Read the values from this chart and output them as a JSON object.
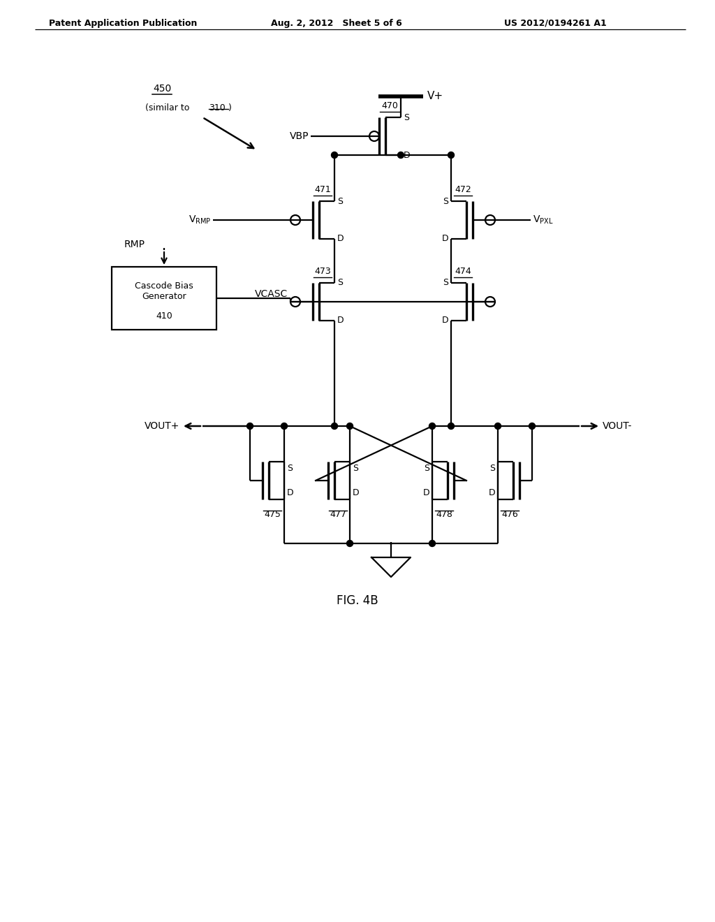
{
  "header_left": "Patent Application Publication",
  "header_mid": "Aug. 2, 2012   Sheet 5 of 6",
  "header_right": "US 2012/0194261 A1",
  "fig_label": "FIG. 4B",
  "bg_color": "#ffffff"
}
